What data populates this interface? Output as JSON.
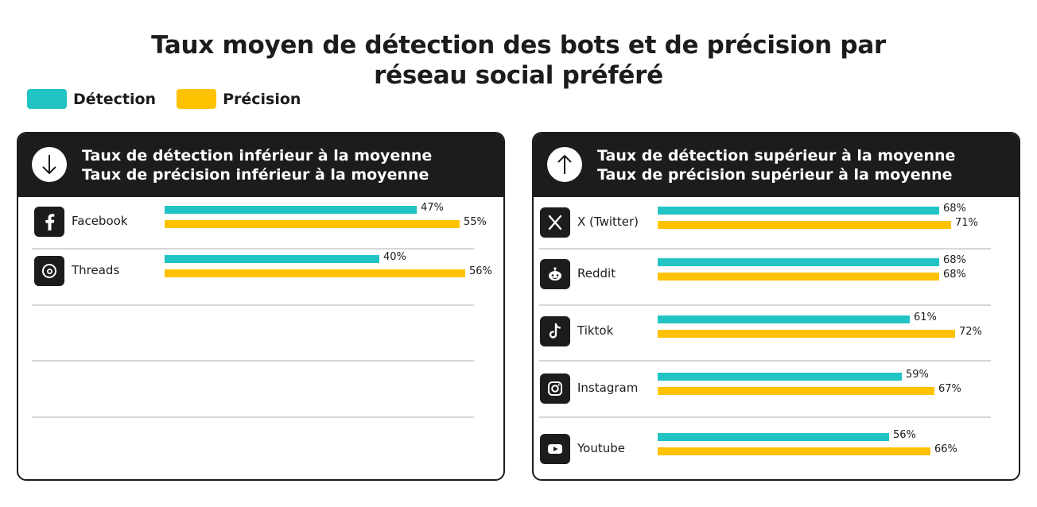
{
  "title_line1": "Taux moyen de détection des bots et de précision par",
  "title_line2": "réseau social préféré",
  "legend": [
    {
      "label": "Détection",
      "color": "#21c4c3"
    },
    {
      "label": "Précision",
      "color": "#ffc200"
    }
  ],
  "colors": {
    "detection": "#21c4c3",
    "precision": "#ffc200",
    "dark": "#1b1c1e"
  },
  "panels": [
    {
      "arrow": "arrow-down-icon",
      "line1": "Taux de détection inférieur à la moyenne",
      "line2": "Taux de précision inférieur à la moyenne"
    },
    {
      "arrow": "arrow-up-icon",
      "line1": "Taux de détection supérieur à la moyenne",
      "line2": "Taux de précision supérieur à la moyenne"
    }
  ],
  "chart_data": [
    {
      "type": "bar",
      "orientation": "horizontal",
      "categories": [
        "Facebook",
        "Threads"
      ],
      "icons": [
        "facebook-icon",
        "threads-icon"
      ],
      "series": [
        {
          "name": "Détection",
          "values": [
            47,
            40
          ],
          "labels": [
            "47%",
            "40%"
          ]
        },
        {
          "name": "Précision",
          "values": [
            55,
            56
          ],
          "labels": [
            "55%",
            "56%"
          ]
        }
      ],
      "unit": "%",
      "grid": false,
      "legend_position": "top-left"
    },
    {
      "type": "bar",
      "orientation": "horizontal",
      "categories": [
        "X (Twitter)",
        "Reddit",
        "Tiktok",
        "Instagram",
        "Youtube"
      ],
      "icons": [
        "x-twitter-icon",
        "reddit-icon",
        "tiktok-icon",
        "instagram-icon",
        "youtube-icon"
      ],
      "series": [
        {
          "name": "Détection",
          "values": [
            68,
            68,
            61,
            59,
            56
          ],
          "labels": [
            "68%",
            "68%",
            "61%",
            "59%",
            "56%"
          ]
        },
        {
          "name": "Précision",
          "values": [
            71,
            68,
            72,
            67,
            66
          ],
          "labels": [
            "71%",
            "68%",
            "72%",
            "67%",
            "66%"
          ]
        }
      ],
      "unit": "%",
      "grid": false,
      "legend_position": "top-left"
    }
  ]
}
